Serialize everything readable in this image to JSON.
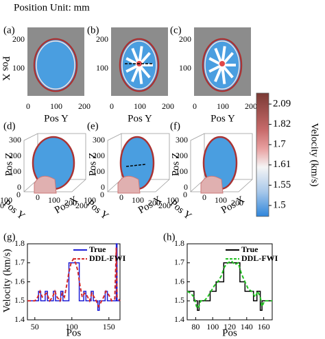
{
  "header": "Position Unit: mm",
  "image_panels": [
    {
      "label": "(a)",
      "x_label": "Pos Y",
      "y_label": "Pos X",
      "xticks": [
        "0",
        "100",
        "200"
      ],
      "yticks": [
        "200",
        "100"
      ]
    },
    {
      "label": "(b)",
      "x_label": "Pos Y",
      "xticks": [
        "0",
        "100",
        "200"
      ],
      "yticks": [
        "200",
        "100"
      ]
    },
    {
      "label": "(c)",
      "x_label": "Pos Y",
      "xticks": [
        "0",
        "100",
        "200"
      ],
      "yticks": [
        "200",
        "100"
      ]
    }
  ],
  "volume_panels": [
    {
      "label": "(d)",
      "z_label": "Pos Z",
      "y_label": "Pos Y",
      "x_label": "Pos X",
      "zticks": [
        "300",
        "200",
        "100",
        "0"
      ],
      "yticks": [
        "0",
        "100",
        "200"
      ],
      "xticks": [
        "0",
        "100",
        "200"
      ]
    },
    {
      "label": "(e)",
      "z_label": "Pos Z",
      "y_label": "Pos Y",
      "x_label": "Pos X",
      "zticks": [
        "300",
        "200",
        "100",
        "0"
      ],
      "yticks": [
        "0",
        "100",
        "200"
      ],
      "xticks": [
        "0",
        "100",
        "200"
      ]
    },
    {
      "label": "(f)",
      "z_label": "Pos Z",
      "y_label": "Pos Y",
      "x_label": "Pos X",
      "zticks": [
        "300",
        "200",
        "100",
        "0"
      ],
      "yticks": [
        "0",
        "100",
        "200"
      ],
      "xticks": [
        "0",
        "100",
        "200"
      ]
    }
  ],
  "colorbar": {
    "label": "Velocity (km/s)",
    "ticks": [
      2.09,
      1.82,
      1.7,
      1.61,
      1.55,
      1.5
    ]
  },
  "chart_data": [
    {
      "type": "line",
      "label": "(g)",
      "x_label": "Pos",
      "y_label": "Velocity (km/s)",
      "xlim": [
        40,
        165
      ],
      "xticks": [
        50,
        100,
        150
      ],
      "ylim": [
        1.4,
        1.8
      ],
      "yticks": [
        1.4,
        1.5,
        1.6,
        1.7,
        1.8
      ],
      "legend": "upper-right",
      "series": [
        {
          "name": "True",
          "color": "#1f1fd6",
          "dash": "solid",
          "x": [
            40,
            55,
            55,
            58,
            58,
            64,
            64,
            67,
            67,
            75,
            75,
            78,
            78,
            85,
            85,
            88,
            88,
            96,
            96,
            110,
            110,
            116,
            116,
            119,
            119,
            126,
            126,
            129,
            129,
            135,
            135,
            137,
            137,
            145,
            145,
            148,
            148,
            160,
            160,
            161,
            161,
            165
          ],
          "values": [
            1.5,
            1.5,
            1.55,
            1.55,
            1.5,
            1.5,
            1.55,
            1.55,
            1.5,
            1.5,
            1.55,
            1.55,
            1.5,
            1.5,
            1.55,
            1.55,
            1.5,
            1.5,
            1.7,
            1.7,
            1.5,
            1.5,
            1.55,
            1.55,
            1.5,
            1.5,
            1.55,
            1.55,
            1.5,
            1.5,
            1.45,
            1.45,
            1.5,
            1.5,
            1.55,
            1.55,
            1.5,
            1.5,
            1.8,
            1.8,
            1.5,
            1.5
          ]
        },
        {
          "name": "DDL-FWI",
          "color": "#d42a2a",
          "dash": "dashed",
          "x": [
            40,
            50,
            54,
            57,
            60,
            63,
            66,
            70,
            74,
            77,
            80,
            84,
            87,
            90,
            93,
            96,
            99,
            102,
            105,
            108,
            111,
            114,
            117,
            120,
            124,
            127,
            130,
            133,
            136,
            139,
            143,
            146,
            150,
            154,
            158,
            160,
            161,
            165
          ],
          "values": [
            1.5,
            1.5,
            1.52,
            1.55,
            1.52,
            1.53,
            1.54,
            1.5,
            1.52,
            1.55,
            1.52,
            1.5,
            1.54,
            1.52,
            1.58,
            1.65,
            1.7,
            1.72,
            1.7,
            1.66,
            1.58,
            1.52,
            1.54,
            1.53,
            1.5,
            1.54,
            1.52,
            1.5,
            1.47,
            1.49,
            1.52,
            1.55,
            1.53,
            1.5,
            1.51,
            1.78,
            1.52,
            1.5
          ]
        }
      ]
    },
    {
      "type": "line",
      "label": "(h)",
      "x_label": "Pos",
      "xlim": [
        70,
        170
      ],
      "xticks": [
        80,
        100,
        120,
        140,
        160
      ],
      "ylim": [
        1.4,
        1.8
      ],
      "yticks": [
        1.4,
        1.5,
        1.6,
        1.7,
        1.8
      ],
      "legend": "upper-right",
      "series": [
        {
          "name": "True",
          "color": "#000000",
          "dash": "solid",
          "x": [
            70,
            78,
            78,
            82,
            82,
            84,
            84,
            97,
            97,
            104,
            104,
            113,
            113,
            132,
            132,
            138,
            138,
            148,
            148,
            152,
            152,
            156,
            156,
            158,
            158,
            170
          ],
          "values": [
            1.55,
            1.55,
            1.5,
            1.5,
            1.45,
            1.45,
            1.5,
            1.5,
            1.55,
            1.55,
            1.6,
            1.6,
            1.7,
            1.7,
            1.6,
            1.6,
            1.55,
            1.55,
            1.5,
            1.5,
            1.55,
            1.55,
            1.45,
            1.45,
            1.5,
            1.5
          ]
        },
        {
          "name": "DDL-FWI",
          "color": "#22c022",
          "dash": "dashed",
          "x": [
            70,
            74,
            78,
            81,
            83,
            86,
            90,
            94,
            98,
            102,
            106,
            110,
            114,
            118,
            122,
            126,
            130,
            134,
            138,
            142,
            146,
            150,
            153,
            156,
            158,
            161,
            165,
            170
          ],
          "values": [
            1.55,
            1.54,
            1.52,
            1.47,
            1.46,
            1.5,
            1.5,
            1.52,
            1.55,
            1.58,
            1.6,
            1.63,
            1.68,
            1.7,
            1.71,
            1.69,
            1.7,
            1.64,
            1.6,
            1.56,
            1.55,
            1.52,
            1.55,
            1.52,
            1.47,
            1.5,
            1.5,
            1.5
          ]
        }
      ]
    }
  ]
}
